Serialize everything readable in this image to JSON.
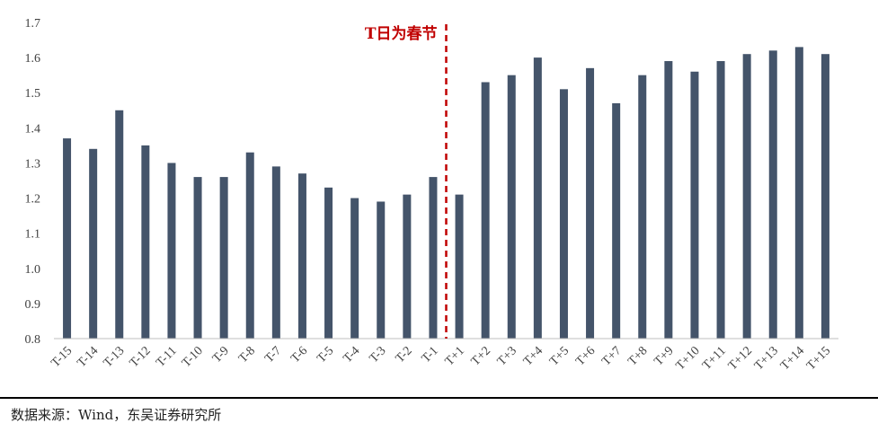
{
  "chart_data": {
    "type": "bar",
    "categories": [
      "T-15",
      "T-14",
      "T-13",
      "T-12",
      "T-11",
      "T-10",
      "T-9",
      "T-8",
      "T-7",
      "T-6",
      "T-5",
      "T-4",
      "T-3",
      "T-2",
      "T-1",
      "T+1",
      "T+2",
      "T+3",
      "T+4",
      "T+5",
      "T+6",
      "T+7",
      "T+8",
      "T+9",
      "T+10",
      "T+11",
      "T+12",
      "T+13",
      "T+14",
      "T+15"
    ],
    "series": [
      {
        "values": [
          1.37,
          1.34,
          1.45,
          1.35,
          1.3,
          1.26,
          1.26,
          1.33,
          1.29,
          1.27,
          1.23,
          1.2,
          1.19,
          1.21,
          1.26,
          1.21,
          1.53,
          1.55,
          1.6,
          1.51,
          1.57,
          1.47,
          1.55,
          1.59,
          1.56,
          1.59,
          1.61,
          1.62,
          1.63,
          1.61
        ]
      }
    ],
    "ylim": [
      0.8,
      1.7
    ],
    "yticks": [
      "0.8",
      "0.9",
      "1.0",
      "1.1",
      "1.2",
      "1.3",
      "1.4",
      "1.5",
      "1.6",
      "1.7"
    ],
    "bar_color": "#44546a",
    "annotation": {
      "text": "T日为春节",
      "color": "#c00000",
      "between": [
        "T-1",
        "T+1"
      ]
    },
    "grid": false
  },
  "source_text": "数据来源：Wind，东吴证券研究所"
}
